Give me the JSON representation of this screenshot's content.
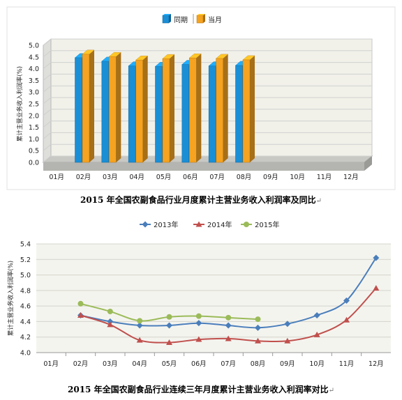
{
  "chart_data": [
    {
      "type": "bar",
      "title": "2015 年全国农副食品行业月度累计主营业务收入利润率及同比",
      "ylabel": "累计主营业务收入利润率(%)",
      "categories": [
        "01月",
        "02月",
        "03月",
        "04月",
        "05月",
        "06月",
        "07月",
        "08月",
        "09月",
        "10月",
        "11月",
        "12月"
      ],
      "yticks": [
        "0.0",
        "0.5",
        "1.0",
        "1.5",
        "2.0",
        "2.5",
        "3.0",
        "3.5",
        "4.0",
        "4.5",
        "5.0"
      ],
      "ylim": [
        0,
        5
      ],
      "legend_position": "top",
      "series": [
        {
          "name": "同期",
          "color": "#1a8fd6",
          "values": [
            null,
            4.47,
            4.32,
            4.12,
            4.1,
            4.18,
            4.12,
            4.14,
            null,
            null,
            null,
            null
          ]
        },
        {
          "name": "当月",
          "color": "#f5a320",
          "values": [
            null,
            4.62,
            4.52,
            4.37,
            4.43,
            4.46,
            4.44,
            4.38,
            null,
            null,
            null,
            null
          ]
        }
      ]
    },
    {
      "type": "line",
      "title": "2015 年全国农副食品行业连续三年月度累计主营业务收入利润率对比",
      "ylabel": "累计主营业务收入利润率(%)",
      "categories": [
        "01月",
        "02月",
        "03月",
        "04月",
        "05月",
        "06月",
        "07月",
        "08月",
        "09月",
        "10月",
        "11月",
        "12月"
      ],
      "yticks": [
        "4.0",
        "4.2",
        "4.4",
        "4.6",
        "4.8",
        "5.0",
        "5.2",
        "5.4"
      ],
      "ylim": [
        4.0,
        5.4
      ],
      "legend_position": "top",
      "series": [
        {
          "name": "2013年",
          "color": "#4a7ebb",
          "marker": "diamond",
          "values": [
            null,
            4.48,
            4.4,
            4.35,
            4.35,
            4.38,
            4.35,
            4.32,
            4.37,
            4.48,
            4.67,
            5.22
          ]
        },
        {
          "name": "2014年",
          "color": "#c0504d",
          "marker": "triangle",
          "values": [
            null,
            4.48,
            4.36,
            4.16,
            4.13,
            4.17,
            4.18,
            4.15,
            4.15,
            4.23,
            4.42,
            4.83
          ]
        },
        {
          "name": "2015年",
          "color": "#9bbb59",
          "marker": "circle",
          "values": [
            null,
            4.63,
            4.53,
            4.41,
            4.46,
            4.47,
            4.45,
            4.43,
            null,
            null,
            null,
            null
          ]
        }
      ]
    }
  ],
  "return_mark": "↵"
}
